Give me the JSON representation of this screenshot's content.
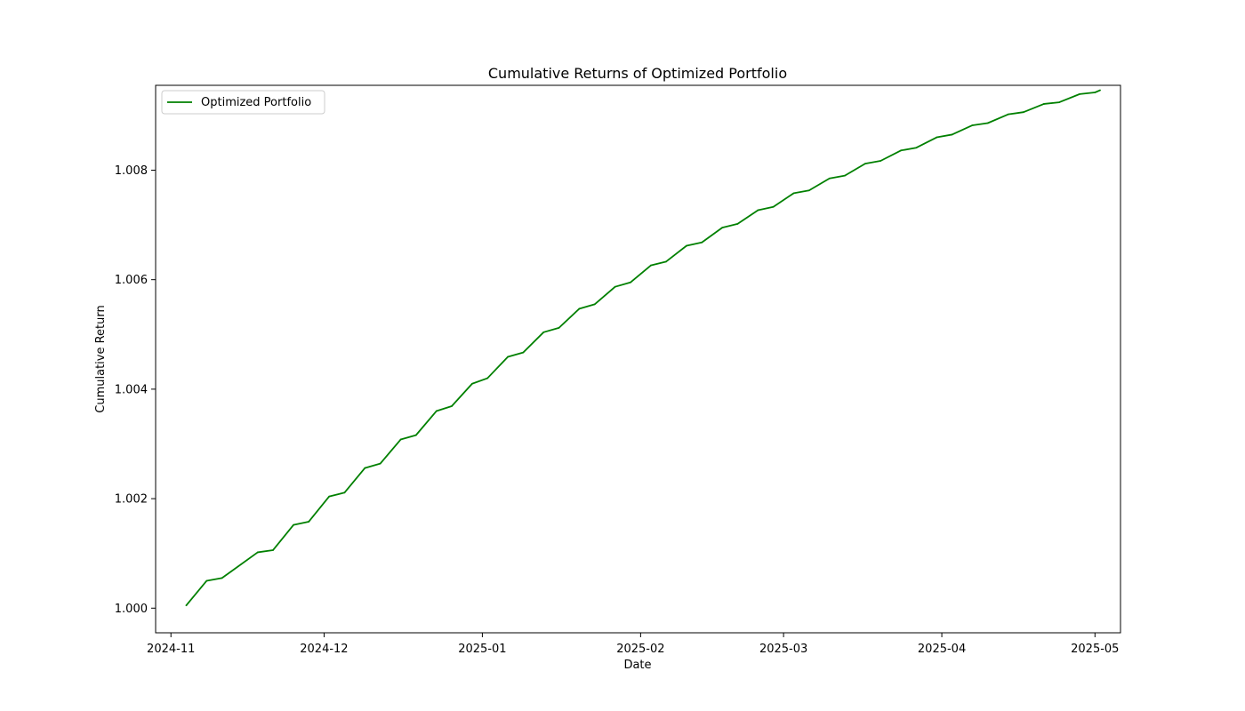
{
  "chart_data": {
    "type": "line",
    "title": "Cumulative Returns of Optimized Portfolio",
    "xlabel": "Date",
    "ylabel": "Cumulative Return",
    "xlim": [
      "2024-10-29",
      "2025-05-06"
    ],
    "ylim": [
      0.99955,
      1.00955
    ],
    "grid": false,
    "legend_position": "top-left",
    "x_ticks": [
      "2024-11",
      "2024-12",
      "2025-01",
      "2025-02",
      "2025-03",
      "2025-04",
      "2025-05"
    ],
    "y_ticks": [
      1.0,
      1.002,
      1.004,
      1.006,
      1.008
    ],
    "y_tick_labels": [
      "1.000",
      "1.002",
      "1.004",
      "1.006",
      "1.008"
    ],
    "series": [
      {
        "name": "Optimized Portfolio",
        "color": "#008000",
        "points": [
          [
            "2024-11-04",
            1.00005
          ],
          [
            "2024-11-08",
            1.0005
          ],
          [
            "2024-11-11",
            1.00055
          ],
          [
            "2024-11-18",
            1.00102
          ],
          [
            "2024-11-21",
            1.00106
          ],
          [
            "2024-11-25",
            1.00152
          ],
          [
            "2024-11-28",
            1.00158
          ],
          [
            "2024-12-02",
            1.00204
          ],
          [
            "2024-12-05",
            1.00211
          ],
          [
            "2024-12-09",
            1.00256
          ],
          [
            "2024-12-12",
            1.00264
          ],
          [
            "2024-12-16",
            1.00308
          ],
          [
            "2024-12-19",
            1.00316
          ],
          [
            "2024-12-23",
            1.0036
          ],
          [
            "2024-12-26",
            1.00369
          ],
          [
            "2024-12-30",
            1.0041
          ],
          [
            "2025-01-02",
            1.0042
          ],
          [
            "2025-01-06",
            1.00459
          ],
          [
            "2025-01-09",
            1.00467
          ],
          [
            "2025-01-13",
            1.00504
          ],
          [
            "2025-01-16",
            1.00512
          ],
          [
            "2025-01-20",
            1.00547
          ],
          [
            "2025-01-23",
            1.00555
          ],
          [
            "2025-01-27",
            1.00587
          ],
          [
            "2025-01-30",
            1.00595
          ],
          [
            "2025-02-03",
            1.00626
          ],
          [
            "2025-02-06",
            1.00633
          ],
          [
            "2025-02-10",
            1.00662
          ],
          [
            "2025-02-13",
            1.00668
          ],
          [
            "2025-02-17",
            1.00695
          ],
          [
            "2025-02-20",
            1.00702
          ],
          [
            "2025-02-24",
            1.00727
          ],
          [
            "2025-02-27",
            1.00733
          ],
          [
            "2025-03-03",
            1.00758
          ],
          [
            "2025-03-06",
            1.00763
          ],
          [
            "2025-03-10",
            1.00785
          ],
          [
            "2025-03-13",
            1.0079
          ],
          [
            "2025-03-17",
            1.00812
          ],
          [
            "2025-03-20",
            1.00817
          ],
          [
            "2025-03-24",
            1.00836
          ],
          [
            "2025-03-27",
            1.00841
          ],
          [
            "2025-03-31",
            1.0086
          ],
          [
            "2025-04-03",
            1.00865
          ],
          [
            "2025-04-07",
            1.00882
          ],
          [
            "2025-04-10",
            1.00886
          ],
          [
            "2025-04-14",
            1.00902
          ],
          [
            "2025-04-17",
            1.00906
          ],
          [
            "2025-04-21",
            1.00921
          ],
          [
            "2025-04-24",
            1.00924
          ],
          [
            "2025-04-28",
            1.00939
          ],
          [
            "2025-05-01",
            1.00942
          ],
          [
            "2025-05-02",
            1.00946
          ]
        ]
      }
    ]
  }
}
